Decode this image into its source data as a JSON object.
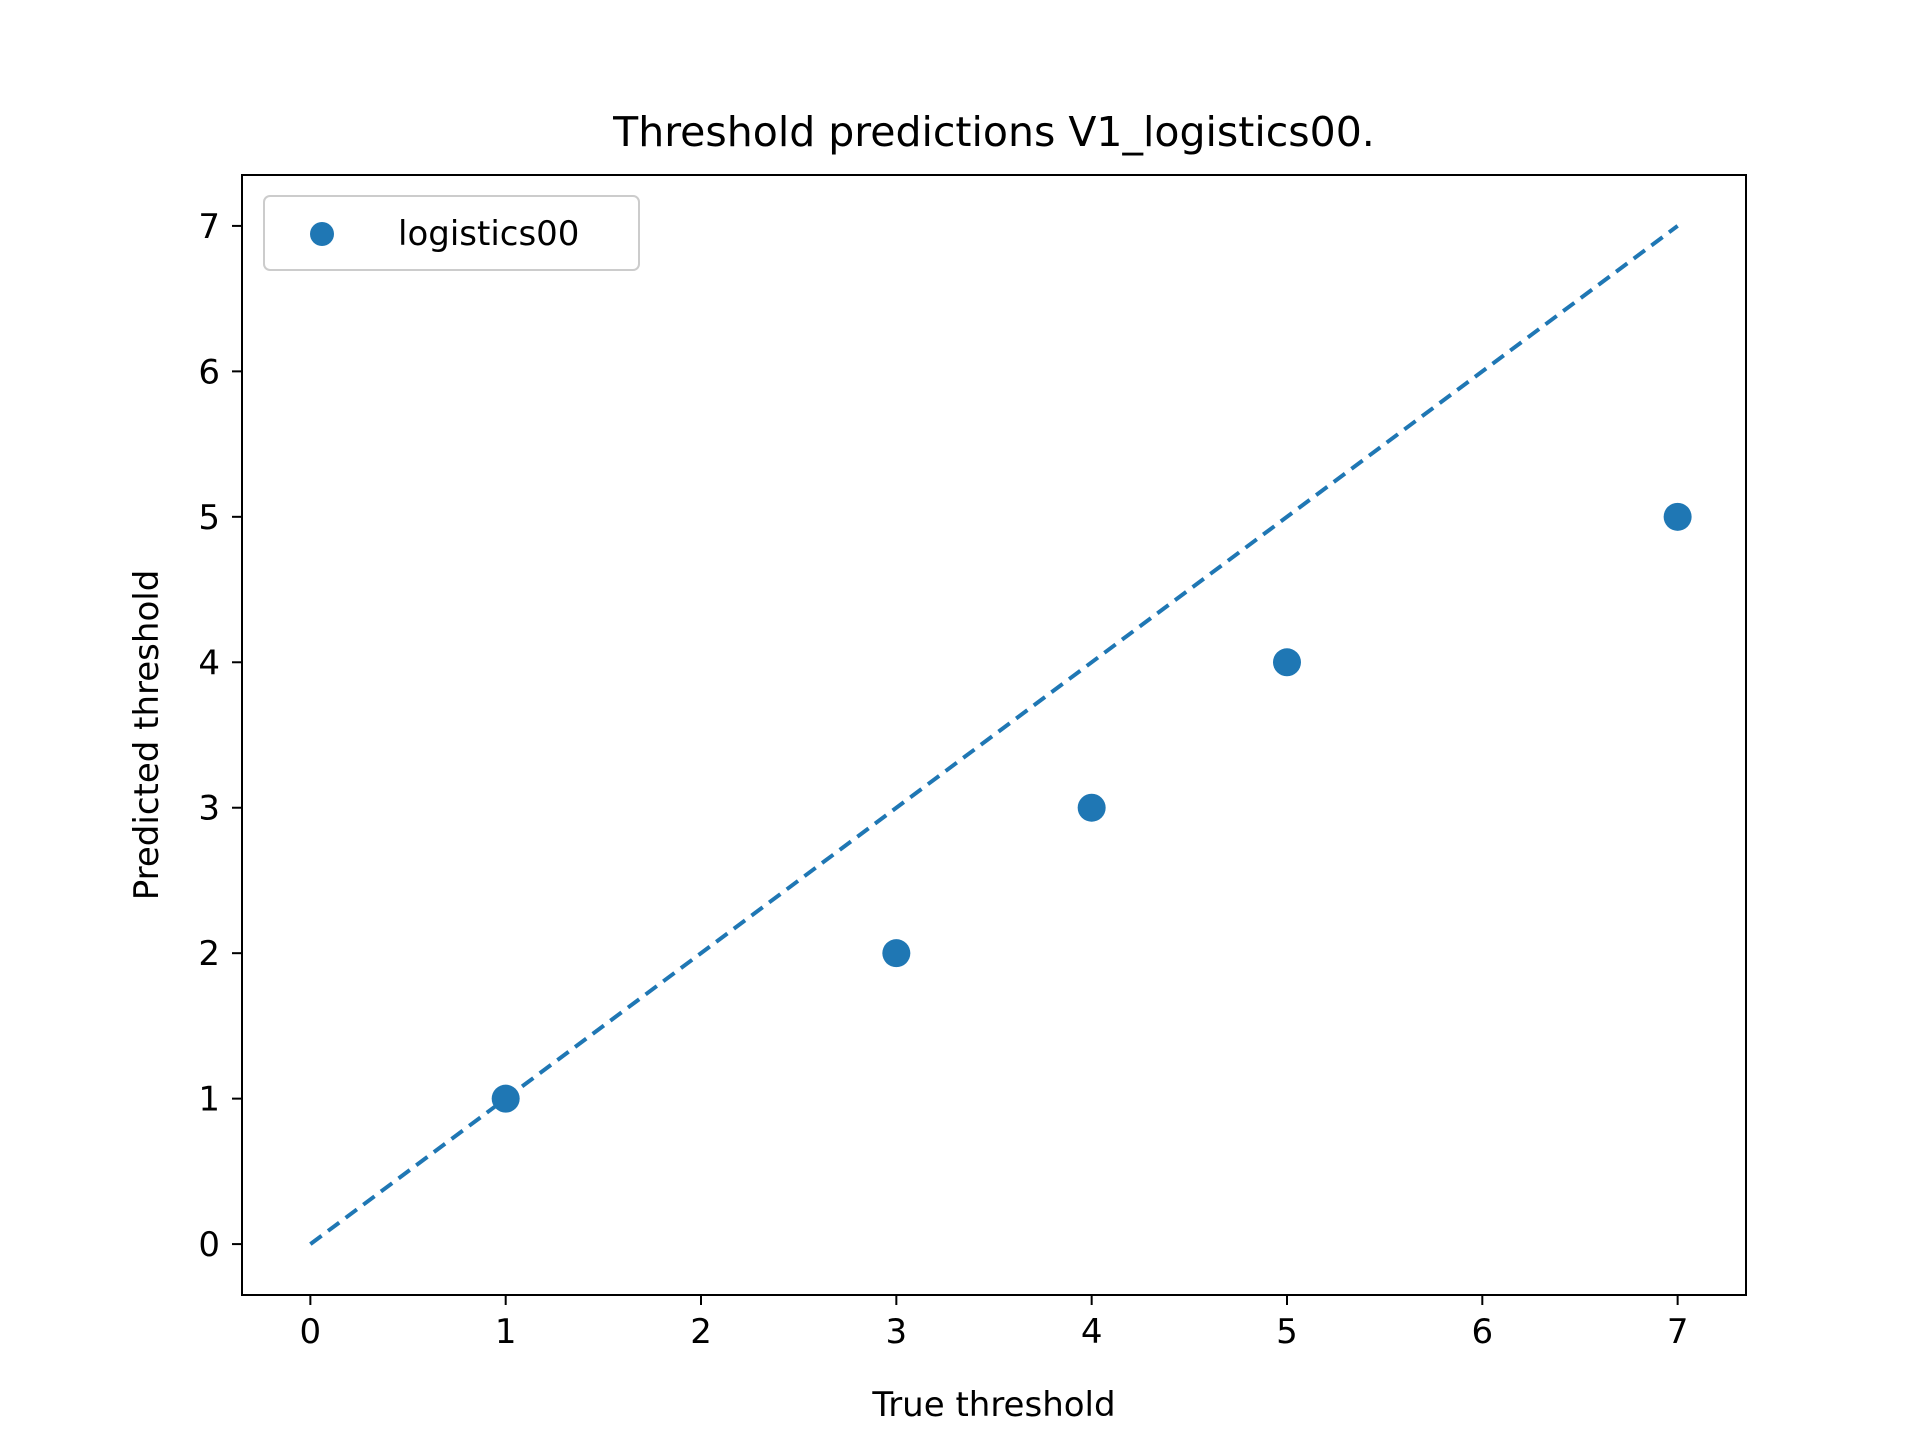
{
  "chart_data": {
    "type": "scatter",
    "title": "Threshold predictions V1_logistics00.",
    "xlabel": "True threshold",
    "ylabel": "Predicted threshold",
    "xlim": [
      -0.35,
      7.35
    ],
    "ylim": [
      -0.35,
      7.35
    ],
    "xticks": [
      "0",
      "1",
      "2",
      "3",
      "4",
      "5",
      "6",
      "7"
    ],
    "yticks": [
      "0",
      "1",
      "2",
      "3",
      "4",
      "5",
      "6",
      "7"
    ],
    "grid": false,
    "legend": {
      "placement": "upper-left",
      "entries": [
        "logistics00"
      ]
    },
    "series": [
      {
        "name": "logistics00",
        "kind": "scatter",
        "color": "#1f77b4",
        "points": [
          {
            "x": 1,
            "y": 1
          },
          {
            "x": 3,
            "y": 2
          },
          {
            "x": 4,
            "y": 3
          },
          {
            "x": 5,
            "y": 4
          },
          {
            "x": 7,
            "y": 5
          }
        ]
      }
    ],
    "reference_line": {
      "style": "dashed",
      "color": "#1f77b4",
      "from": {
        "x": 0,
        "y": 0
      },
      "to": {
        "x": 7,
        "y": 7
      }
    }
  }
}
